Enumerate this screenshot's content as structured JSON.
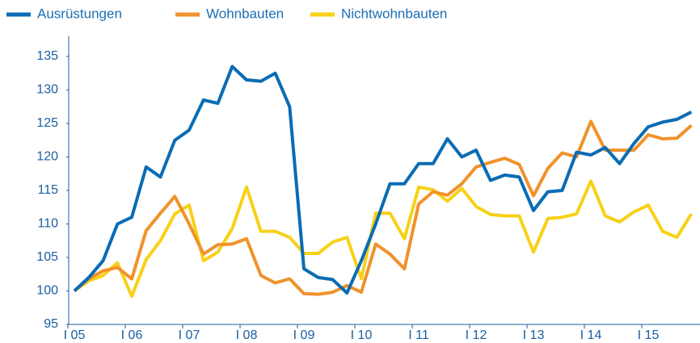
{
  "chart_data": {
    "type": "line",
    "categories": [
      "I 05",
      null,
      null,
      null,
      "I 06",
      null,
      null,
      null,
      "I 07",
      null,
      null,
      null,
      "I 08",
      null,
      null,
      null,
      "I 09",
      null,
      null,
      null,
      "I 10",
      null,
      null,
      null,
      "I 11",
      null,
      null,
      null,
      "I 12",
      null,
      null,
      null,
      "I 13",
      null,
      null,
      null,
      "I 14",
      null,
      null,
      null,
      "I 15",
      null,
      null,
      null
    ],
    "series": [
      {
        "name": "Ausrüstungen",
        "color": "#0a6cb4",
        "values": [
          100,
          102,
          104.5,
          110,
          111,
          118.5,
          117,
          122.5,
          124,
          128.5,
          128,
          133.5,
          131.5,
          131.3,
          132.5,
          127.5,
          103.3,
          102,
          101.7,
          99.7,
          104.5,
          110,
          116,
          116,
          119,
          119,
          122.7,
          120,
          121,
          116.5,
          117.3,
          117,
          112,
          114.8,
          115,
          120.7,
          120.3,
          121.4,
          119,
          122,
          124.5,
          125.2,
          125.6,
          126.7
        ]
      },
      {
        "name": "Wohnbauten",
        "color": "#f0922b",
        "values": [
          100,
          101.8,
          103,
          103.5,
          101.8,
          109,
          111.6,
          114.1,
          110,
          105.5,
          106.9,
          107,
          107.8,
          102.3,
          101.2,
          101.8,
          99.6,
          99.5,
          99.8,
          100.8,
          99.8,
          107,
          105.5,
          103.3,
          113,
          114.8,
          114.3,
          116,
          118.5,
          119.2,
          119.8,
          118.9,
          114.2,
          118.3,
          120.6,
          120,
          125.3,
          121,
          121,
          121,
          123.3,
          122.7,
          122.8,
          124.7
        ]
      },
      {
        "name": "Nichtwohnbauten",
        "color": "#f7d117",
        "values": [
          100,
          101.5,
          102.3,
          104.2,
          99.2,
          104.7,
          107.5,
          111.5,
          112.8,
          104.5,
          105.8,
          109.3,
          115.5,
          108.9,
          108.9,
          108,
          105.6,
          105.6,
          107.3,
          108,
          101.8,
          111.6,
          111.6,
          107.8,
          115.5,
          115.1,
          113.4,
          115.3,
          112.6,
          111.4,
          111.2,
          111.2,
          105.8,
          110.8,
          111,
          111.5,
          116.4,
          111.2,
          110.3,
          111.8,
          112.8,
          108.9,
          108,
          111.5
        ]
      }
    ],
    "ylim": [
      95,
      138
    ],
    "yticks": [
      95,
      100,
      105,
      110,
      115,
      120,
      125,
      130,
      135
    ],
    "grid": false,
    "legend": "top-left"
  }
}
